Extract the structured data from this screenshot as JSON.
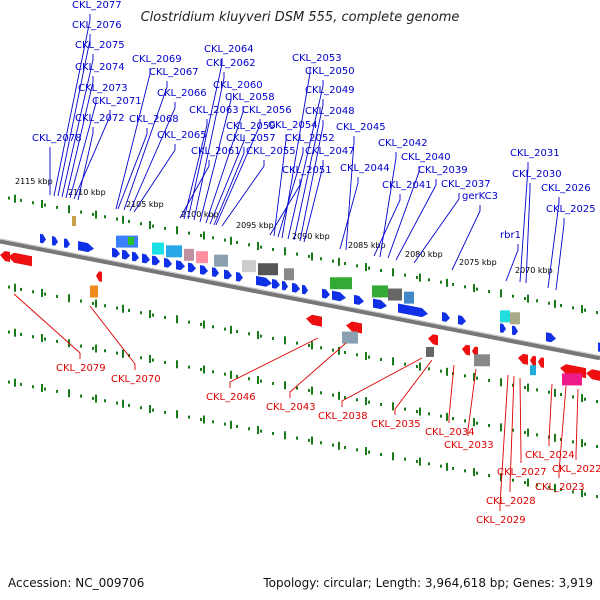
{
  "title": "Clostridium kluyveri DSM 555, complete genome",
  "footer": {
    "accession": "Accession: NC_009706",
    "summary": "Topology: circular; Length: 3,964,618 bp; Genes: 3,919"
  },
  "colors": {
    "forward_label": "#0000cc",
    "reverse_label": "#dd0000",
    "forward_feature": "#1030e8",
    "reverse_feature": "#ee1010",
    "backbone": "#777777",
    "tick": "#1a7a1a"
  },
  "ticks": [
    "2115 kbp",
    "2110 kbp",
    "2105 kbp",
    "2100 kbp",
    "2095 kbp",
    "2090 kbp",
    "2085 kbp",
    "2080 kbp",
    "2075 kbp",
    "2070 kbp"
  ],
  "forward_labels": [
    "CKL_2077",
    "CKL_2076",
    "CKL_2075",
    "CKL_2074",
    "CKL_2073",
    "CKL_2071",
    "CKL_2072",
    "CKL_2078",
    "CKL_2069",
    "CKL_2067",
    "CKL_2066",
    "CKL_2068",
    "CKL_2065",
    "CKL_2064",
    "CKL_2062",
    "CKL_2060",
    "CKL_2058",
    "CKL_2063",
    "CKL_2056",
    "CKL_2059",
    "CKL_2057",
    "CKL_2061",
    "CKL_2055",
    "CKL_2053",
    "CKL_2050",
    "CKL_2049",
    "CKL_2048",
    "CKL_2054",
    "CKL_2052",
    "CKL_2047",
    "CKL_2051",
    "CKL_2045",
    "CKL_2044",
    "CKL_2042",
    "CKL_2040",
    "CKL_2041",
    "CKL_2039",
    "CKL_2037",
    "gerKC3",
    "rbr1",
    "CKL_2031",
    "CKL_2030",
    "CKL_2026",
    "CKL_2025"
  ],
  "reverse_labels": [
    "CKL_2079",
    "CKL_2070",
    "CKL_2046",
    "CKL_2043",
    "CKL_2038",
    "CKL_2035",
    "CKL_2034",
    "CKL_2033",
    "CKL_2027",
    "CKL_2028",
    "CKL_2029",
    "CKL_2024",
    "CKL_2022",
    "CKL_2023"
  ]
}
